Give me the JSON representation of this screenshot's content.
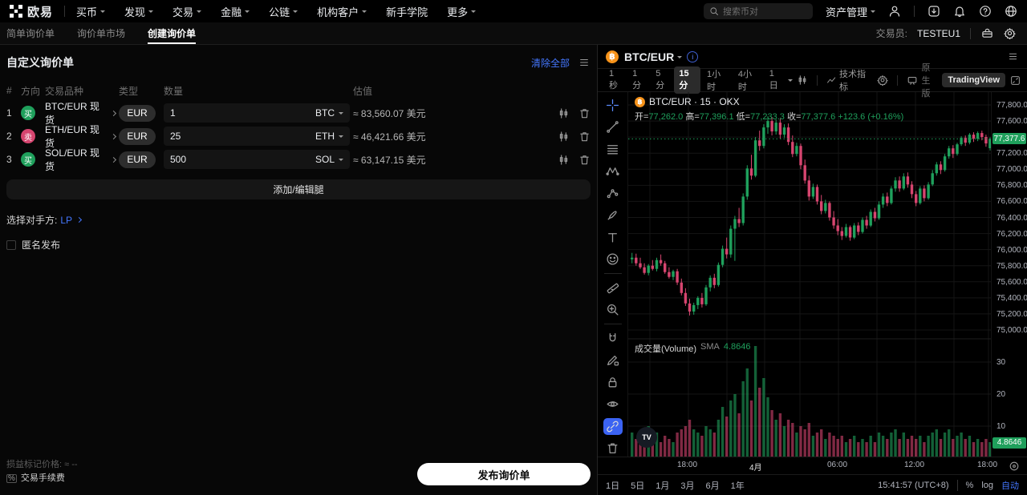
{
  "colors": {
    "accent_blue": "#4477ff",
    "up_green": "#1fa05c",
    "down_red": "#d6456f",
    "btc_orange": "#f7931a"
  },
  "topnav": {
    "brand": "欧易",
    "menu": [
      "买币",
      "发现",
      "交易",
      "金融",
      "公链",
      "机构客户",
      "新手学院",
      "更多"
    ],
    "search_placeholder": "搜索币对",
    "asset_mgmt": "资产管理"
  },
  "subnav": {
    "tabs": [
      "简单询价单",
      "询价单市场",
      "创建询价单"
    ],
    "trader_label": "交易员:",
    "trader_name": "TESTEU1"
  },
  "rfq": {
    "title": "自定义询价单",
    "clear_all": "清除全部",
    "columns": {
      "idx": "#",
      "side": "方向",
      "pair": "交易品种",
      "type": "类型",
      "amount": "数量",
      "value": "估值"
    },
    "legs": [
      {
        "index": "1",
        "side": "买",
        "pair": "BTC/EUR 现货",
        "currency": "EUR",
        "amount": "1",
        "unit": "BTC",
        "value": "≈ 83,560.07 美元"
      },
      {
        "index": "2",
        "side": "卖",
        "pair": "ETH/EUR 现货",
        "currency": "EUR",
        "amount": "25",
        "unit": "ETH",
        "value": "≈ 46,421.66 美元"
      },
      {
        "index": "3",
        "side": "买",
        "pair": "SOL/EUR 现货",
        "currency": "EUR",
        "amount": "500",
        "unit": "SOL",
        "value": "≈ 63,147.15 美元"
      }
    ],
    "add_button": "添加/编辑腿",
    "counterparty_label": "选择对手方:",
    "counterparty_value": "LP",
    "anonymous_label": "匿名发布",
    "footer": {
      "pnl_label": "损益标记价格:",
      "pnl_value": "≈ --",
      "fee_icon": "%",
      "fee_label": "交易手续费",
      "submit": "发布询价单"
    }
  },
  "chart": {
    "pair": "BTC/EUR",
    "coin_glyph": "฿",
    "toolbar": {
      "intervals": [
        "1秒",
        "1分",
        "5分",
        "15分",
        "1小时",
        "4小时",
        "1日"
      ],
      "active_interval": "15分",
      "indicators": "技术指标",
      "native_label": "原生版",
      "tv_label": "TradingView"
    },
    "legend_title": "BTC/EUR · 15 · OKX",
    "ohlc": {
      "o_label": "开=",
      "o": "77,262.0",
      "h_label": "高=",
      "h": "77,396.1",
      "l_label": "低=",
      "l": "77,233.3",
      "c_label": "收=",
      "c": "77,377.6",
      "change": "+123.6 (+0.16%)"
    },
    "volume_legend": {
      "title": "成交量(Volume)",
      "sma_label": "SMA",
      "sma_value": "4.8646"
    },
    "price_badge": "77,377.6",
    "volume_badge": "4.8646",
    "time_labels": [
      "18:00",
      "4月",
      "06:00",
      "12:00",
      "18:00"
    ],
    "tv_watermark": "TV",
    "bottom": {
      "ranges": [
        "1日",
        "5日",
        "1月",
        "3月",
        "6月",
        "1年"
      ],
      "clock": "15:41:57 (UTC+8)",
      "percent": "%",
      "log": "log",
      "auto": "自动"
    }
  },
  "chart_data": {
    "type": "candlestick",
    "symbol": "BTC/EUR",
    "exchange": "OKX",
    "interval": "15m",
    "price_axis": {
      "min": 75000,
      "max": 77800,
      "step": 200
    },
    "volume_axis": [
      30,
      20,
      10
    ],
    "last_price": 77377.6,
    "volume_sma": 4.8646,
    "time_gridline_labels": [
      "18:00",
      "4月",
      "06:00",
      "12:00",
      "18:00"
    ],
    "columns": [
      "open",
      "high",
      "low",
      "close",
      "volume"
    ],
    "candles": [
      [
        75880,
        75960,
        75830,
        75900,
        8
      ],
      [
        75900,
        75950,
        75800,
        75830,
        6
      ],
      [
        75830,
        75900,
        75760,
        75780,
        5
      ],
      [
        75780,
        75830,
        75690,
        75710,
        7
      ],
      [
        75710,
        75820,
        75680,
        75800,
        10
      ],
      [
        75800,
        75870,
        75740,
        75760,
        6
      ],
      [
        75760,
        75900,
        75730,
        75870,
        8
      ],
      [
        75870,
        75940,
        75800,
        75830,
        5
      ],
      [
        75830,
        75860,
        75700,
        75720,
        7
      ],
      [
        75720,
        75780,
        75640,
        75660,
        6
      ],
      [
        75660,
        75750,
        75620,
        75730,
        5
      ],
      [
        75730,
        75760,
        75560,
        75590,
        8
      ],
      [
        75590,
        75640,
        75430,
        75460,
        9
      ],
      [
        75460,
        75520,
        75300,
        75330,
        10
      ],
      [
        75330,
        75390,
        75180,
        75230,
        12
      ],
      [
        75230,
        75340,
        75190,
        75310,
        9
      ],
      [
        75310,
        75420,
        75260,
        75400,
        8
      ],
      [
        75400,
        75460,
        75280,
        75320,
        7
      ],
      [
        75320,
        75560,
        75300,
        75530,
        10
      ],
      [
        75530,
        75680,
        75480,
        75650,
        9
      ],
      [
        75650,
        75700,
        75520,
        75560,
        8
      ],
      [
        75560,
        75840,
        75540,
        75810,
        12
      ],
      [
        75810,
        76050,
        75780,
        76010,
        16
      ],
      [
        76010,
        76150,
        75890,
        75940,
        13
      ],
      [
        75940,
        76300,
        75900,
        76260,
        18
      ],
      [
        76260,
        76420,
        75860,
        76380,
        20
      ],
      [
        76380,
        76520,
        76280,
        76330,
        14
      ],
      [
        76330,
        76700,
        76300,
        76660,
        24
      ],
      [
        76660,
        77050,
        76620,
        77010,
        28
      ],
      [
        77010,
        77180,
        76870,
        76920,
        18
      ],
      [
        76920,
        77400,
        76900,
        77360,
        35
      ],
      [
        77360,
        77480,
        77230,
        77290,
        22
      ],
      [
        77290,
        77560,
        77260,
        77520,
        25
      ],
      [
        77520,
        77660,
        77440,
        77600,
        19
      ],
      [
        77600,
        77650,
        77420,
        77470,
        15
      ],
      [
        77470,
        77620,
        77430,
        77580,
        12
      ],
      [
        77580,
        77630,
        77380,
        77430,
        14
      ],
      [
        77430,
        77560,
        77390,
        77520,
        10
      ],
      [
        77520,
        77570,
        77300,
        77340,
        12
      ],
      [
        77340,
        77420,
        77150,
        77190,
        11
      ],
      [
        77190,
        77330,
        77160,
        77290,
        8
      ],
      [
        77290,
        77320,
        77000,
        77050,
        10
      ],
      [
        77050,
        77120,
        76820,
        76860,
        9
      ],
      [
        76860,
        76920,
        76610,
        76660,
        11
      ],
      [
        76660,
        76820,
        76630,
        76780,
        7
      ],
      [
        76780,
        76810,
        76560,
        76600,
        8
      ],
      [
        76600,
        76680,
        76440,
        76480,
        9
      ],
      [
        76480,
        76620,
        76450,
        76580,
        6
      ],
      [
        76580,
        76600,
        76360,
        76400,
        8
      ],
      [
        76400,
        76480,
        76260,
        76300,
        7
      ],
      [
        76300,
        76380,
        76180,
        76230,
        6
      ],
      [
        76230,
        76280,
        76120,
        76170,
        7
      ],
      [
        76170,
        76320,
        76150,
        76280,
        5
      ],
      [
        76280,
        76300,
        76110,
        76150,
        6
      ],
      [
        76150,
        76330,
        76130,
        76300,
        7
      ],
      [
        76300,
        76340,
        76180,
        76220,
        5
      ],
      [
        76220,
        76400,
        76200,
        76370,
        6
      ],
      [
        76370,
        76420,
        76260,
        76300,
        5
      ],
      [
        76300,
        76500,
        76280,
        76470,
        7
      ],
      [
        76470,
        76520,
        76350,
        76390,
        5
      ],
      [
        76390,
        76600,
        76370,
        76560,
        8
      ],
      [
        76560,
        76700,
        76520,
        76660,
        7
      ],
      [
        76660,
        76710,
        76540,
        76580,
        6
      ],
      [
        76580,
        76790,
        76560,
        76760,
        8
      ],
      [
        76760,
        76900,
        76720,
        76860,
        9
      ],
      [
        76860,
        76910,
        76720,
        76760,
        6
      ],
      [
        76760,
        76950,
        76740,
        76910,
        8
      ],
      [
        76910,
        76960,
        76770,
        76810,
        6
      ],
      [
        76810,
        76850,
        76640,
        76690,
        7
      ],
      [
        76690,
        76730,
        76540,
        76580,
        6
      ],
      [
        76580,
        76790,
        76560,
        76760,
        7
      ],
      [
        76760,
        76800,
        76600,
        76640,
        5
      ],
      [
        76640,
        76840,
        76620,
        76810,
        7
      ],
      [
        76810,
        76990,
        76790,
        76950,
        8
      ],
      [
        76950,
        77090,
        76920,
        77060,
        9
      ],
      [
        77060,
        77100,
        76940,
        76990,
        6
      ],
      [
        76990,
        77190,
        76970,
        77160,
        8
      ],
      [
        77160,
        77290,
        77130,
        77260,
        9
      ],
      [
        77260,
        77300,
        77140,
        77190,
        6
      ],
      [
        77190,
        77330,
        77170,
        77310,
        7
      ],
      [
        77310,
        77410,
        77290,
        77390,
        8
      ],
      [
        77390,
        77420,
        77290,
        77330,
        6
      ],
      [
        77330,
        77450,
        77310,
        77430,
        7
      ],
      [
        77430,
        77460,
        77340,
        77380,
        5
      ],
      [
        77380,
        77470,
        77350,
        77450,
        6
      ],
      [
        77450,
        77480,
        77360,
        77400,
        5
      ],
      [
        77400,
        77430,
        77280,
        77320,
        6
      ],
      [
        77262,
        77396.1,
        77233.3,
        77377.6,
        5
      ]
    ]
  }
}
